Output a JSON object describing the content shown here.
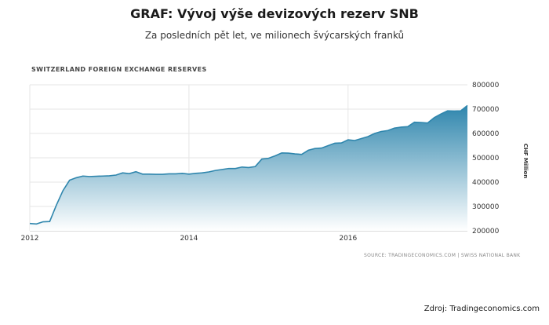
{
  "page": {
    "title": "GRAF: Vývoj výše devizových rezerv SNB",
    "subtitle": "Za posledních pět let, ve milionech švýcarských franků",
    "footer_source": "Zdroj: Tradingeconomics.com"
  },
  "chart_data": {
    "type": "area",
    "title": "SWITZERLAND FOREIGN EXCHANGE RESERVES",
    "xlabel": "",
    "ylabel": "CHF Million",
    "source_note": "SOURCE: TRADINGECONOMICS.COM | SWISS NATIONAL BANK",
    "x_ticks": [
      "2012",
      "2014",
      "2016"
    ],
    "y_ticks": [
      200000,
      300000,
      400000,
      500000,
      600000,
      700000,
      800000
    ],
    "ylim": [
      200000,
      800000
    ],
    "xlim": [
      "2012-01",
      "2017-07"
    ],
    "grid": true,
    "colors": {
      "line": "#2f86ad",
      "fill_top": "#2f86ad",
      "fill_bottom": "#ffffff"
    },
    "series": [
      {
        "x": [
          "2012-01",
          "2012-02",
          "2012-03",
          "2012-04",
          "2012-05",
          "2012-06",
          "2012-07",
          "2012-08",
          "2012-09",
          "2012-10",
          "2012-11",
          "2012-12",
          "2013-01",
          "2013-02",
          "2013-03",
          "2013-04",
          "2013-05",
          "2013-06",
          "2013-07",
          "2013-08",
          "2013-09",
          "2013-10",
          "2013-11",
          "2013-12",
          "2014-01",
          "2014-02",
          "2014-03",
          "2014-04",
          "2014-05",
          "2014-06",
          "2014-07",
          "2014-08",
          "2014-09",
          "2014-10",
          "2014-11",
          "2014-12",
          "2015-01",
          "2015-02",
          "2015-03",
          "2015-04",
          "2015-05",
          "2015-06",
          "2015-07",
          "2015-08",
          "2015-09",
          "2015-10",
          "2015-11",
          "2015-12",
          "2016-01",
          "2016-02",
          "2016-03",
          "2016-04",
          "2016-05",
          "2016-06",
          "2016-07",
          "2016-08",
          "2016-09",
          "2016-10",
          "2016-11",
          "2016-12",
          "2017-01",
          "2017-02",
          "2017-03",
          "2017-04",
          "2017-05",
          "2017-06",
          "2017-07"
        ],
        "values": [
          230000,
          228000,
          237000,
          238000,
          305000,
          365000,
          408000,
          418000,
          425000,
          423000,
          424000,
          425000,
          426000,
          429000,
          438000,
          435000,
          443000,
          433000,
          433000,
          432000,
          432000,
          434000,
          434000,
          436000,
          433000,
          436000,
          438000,
          442000,
          448000,
          452000,
          456000,
          456000,
          462000,
          460000,
          464000,
          495000,
          498000,
          508000,
          520000,
          519000,
          516000,
          514000,
          531000,
          538000,
          540000,
          550000,
          560000,
          561000,
          574000,
          571000,
          579000,
          587000,
          600000,
          608000,
          612000,
          622000,
          626000,
          628000,
          646000,
          645000,
          643000,
          665000,
          680000,
          693000,
          692000,
          693000,
          715000
        ]
      }
    ]
  }
}
